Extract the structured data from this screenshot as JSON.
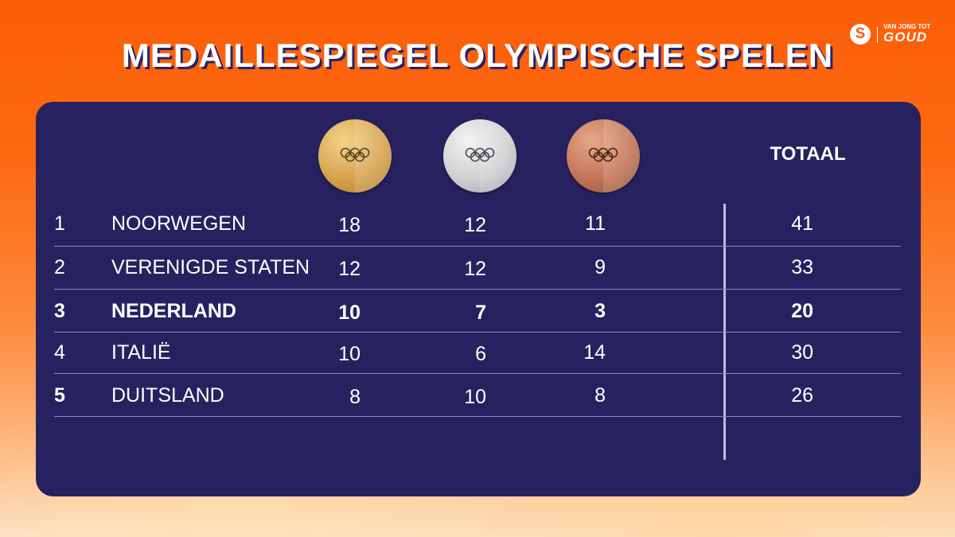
{
  "title": "MEDAILLESPIEGEL OLYMPISCHE SPELEN",
  "logo": {
    "icon": "S",
    "tagline": "VAN JONG TOT",
    "wordmark": "GOUD"
  },
  "header": {
    "total_label": "TOTAAL",
    "medal_icons": [
      "gold-medal",
      "silver-medal",
      "bronze-medal"
    ]
  },
  "colors": {
    "panel": "#27225f",
    "background": "#fb5d08",
    "text": "#ffffff"
  },
  "rows": [
    {
      "rank": "1",
      "country": "NOORWEGEN",
      "gold": "18",
      "silver": "12",
      "bronze": "11",
      "total": "41",
      "highlight": false
    },
    {
      "rank": "2",
      "country": "VERENIGDE STATEN",
      "gold": "12",
      "silver": "12",
      "bronze": "9",
      "total": "33",
      "highlight": false
    },
    {
      "rank": "3",
      "country": "NEDERLAND",
      "gold": "10",
      "silver": "7",
      "bronze": "3",
      "total": "20",
      "highlight": true
    },
    {
      "rank": "4",
      "country": "ITALIË",
      "gold": "10",
      "silver": "6",
      "bronze": "14",
      "total": "30",
      "highlight": false
    },
    {
      "rank": "5",
      "country": "DUITSLAND",
      "gold": "8",
      "silver": "10",
      "bronze": "8",
      "total": "26",
      "highlight": false
    }
  ]
}
